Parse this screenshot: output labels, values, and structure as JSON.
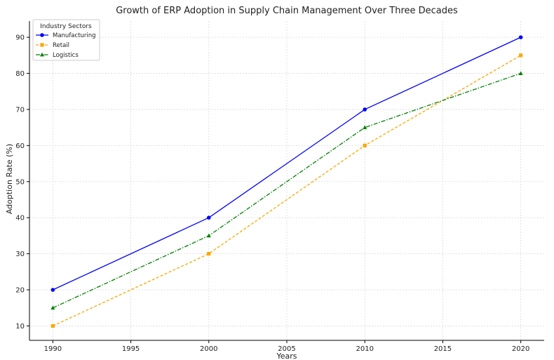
{
  "chart_data": {
    "type": "line",
    "title": "Growth of ERP Adoption in Supply Chain Management Over Three Decades",
    "xlabel": "Years",
    "ylabel": "Adoption Rate (%)",
    "x": [
      1990,
      2000,
      2010,
      2020
    ],
    "xticks": [
      1990,
      1995,
      2000,
      2005,
      2010,
      2015,
      2020
    ],
    "yticks": [
      10,
      20,
      30,
      40,
      50,
      60,
      70,
      80,
      90
    ],
    "xlim": [
      1988.5,
      2021.5
    ],
    "ylim": [
      6,
      94.5
    ],
    "grid": true,
    "legend": {
      "title": "Industry Sectors",
      "placement": "top-left"
    },
    "series": [
      {
        "name": "Manufacturing",
        "values": [
          20,
          40,
          70,
          90
        ],
        "color": "#0000ff",
        "marker": "circle",
        "dash": "solid"
      },
      {
        "name": "Retail",
        "values": [
          10,
          30,
          60,
          85
        ],
        "color": "#ffa500",
        "marker": "square",
        "dash": "dashed"
      },
      {
        "name": "Logistics",
        "values": [
          15,
          35,
          65,
          80
        ],
        "color": "#008000",
        "marker": "triangle",
        "dash": "dashdot"
      }
    ]
  }
}
